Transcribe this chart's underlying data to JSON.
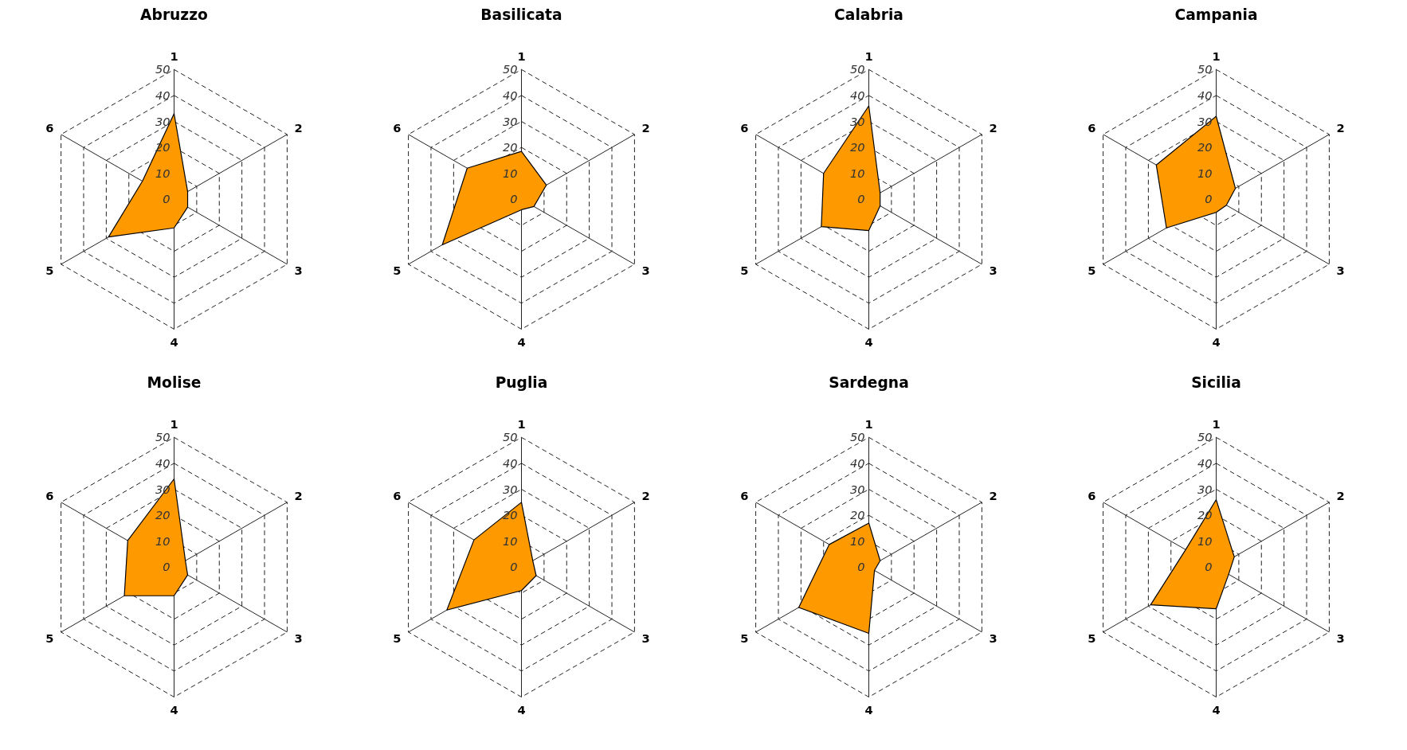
{
  "chart_data": [
    {
      "type": "radar",
      "title": "Abruzzo",
      "categories": [
        "1",
        "2",
        "3",
        "4",
        "5",
        "6"
      ],
      "ylim": [
        0,
        50
      ],
      "yticks": [
        0,
        10,
        20,
        30,
        40,
        50
      ],
      "grid": true,
      "series": [
        {
          "color": "#ff9900",
          "values": [
            33,
            6,
            6,
            11,
            29,
            14
          ]
        }
      ]
    },
    {
      "type": "radar",
      "title": "Basilicata",
      "categories": [
        "1",
        "2",
        "3",
        "4",
        "5",
        "6"
      ],
      "ylim": [
        0,
        50
      ],
      "yticks": [
        0,
        10,
        20,
        30,
        40,
        50
      ],
      "grid": true,
      "series": [
        {
          "color": "#ff9900",
          "values": [
            18.5,
            11,
            5.5,
            4,
            35,
            24
          ]
        }
      ]
    },
    {
      "type": "radar",
      "title": "Calabria",
      "categories": [
        "1",
        "2",
        "3",
        "4",
        "5",
        "6"
      ],
      "ylim": [
        0,
        50
      ],
      "yticks": [
        0,
        10,
        20,
        30,
        40,
        50
      ],
      "grid": true,
      "series": [
        {
          "color": "#ff9900",
          "values": [
            36,
            5,
            5,
            12,
            21,
            20
          ]
        }
      ]
    },
    {
      "type": "radar",
      "title": "Campania",
      "categories": [
        "1",
        "2",
        "3",
        "4",
        "5",
        "6"
      ],
      "ylim": [
        0,
        50
      ],
      "yticks": [
        0,
        10,
        20,
        30,
        40,
        50
      ],
      "grid": true,
      "series": [
        {
          "color": "#ff9900",
          "values": [
            32,
            8.5,
            4.5,
            5,
            22,
            26.5
          ]
        }
      ]
    },
    {
      "type": "radar",
      "title": "Molise",
      "categories": [
        "1",
        "2",
        "3",
        "4",
        "5",
        "6"
      ],
      "ylim": [
        0,
        50
      ],
      "yticks": [
        0,
        10,
        20,
        30,
        40,
        50
      ],
      "grid": true,
      "series": [
        {
          "color": "#ff9900",
          "values": [
            34,
            5,
            6,
            11,
            22,
            20.5
          ]
        }
      ]
    },
    {
      "type": "radar",
      "title": "Puglia",
      "categories": [
        "1",
        "2",
        "3",
        "4",
        "5",
        "6"
      ],
      "ylim": [
        0,
        50
      ],
      "yticks": [
        0,
        10,
        20,
        30,
        40,
        50
      ],
      "grid": true,
      "series": [
        {
          "color": "#ff9900",
          "values": [
            25,
            5,
            6.5,
            9,
            33,
            21
          ]
        }
      ]
    },
    {
      "type": "radar",
      "title": "Sardegna",
      "categories": [
        "1",
        "2",
        "3",
        "4",
        "5",
        "6"
      ],
      "ylim": [
        0,
        50
      ],
      "yticks": [
        0,
        10,
        20,
        30,
        40,
        50
      ],
      "grid": true,
      "series": [
        {
          "color": "#ff9900",
          "values": [
            17,
            5,
            2.5,
            25.5,
            31,
            17.5
          ]
        }
      ]
    },
    {
      "type": "radar",
      "title": "Sicilia",
      "categories": [
        "1",
        "2",
        "3",
        "4",
        "5",
        "6"
      ],
      "ylim": [
        0,
        50
      ],
      "yticks": [
        0,
        10,
        20,
        30,
        40,
        50
      ],
      "grid": true,
      "series": [
        {
          "color": "#ff9900",
          "values": [
            26,
            8,
            5.5,
            16,
            29,
            13.5
          ]
        }
      ]
    }
  ]
}
